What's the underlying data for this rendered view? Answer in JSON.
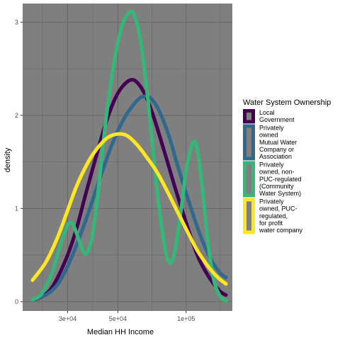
{
  "chart_data": {
    "type": "line",
    "title": "",
    "xlabel": "Median HH Income",
    "ylabel": "density",
    "x_scale": "log10",
    "xlim": [
      19000,
      160000
    ],
    "ylim": [
      -0.1,
      3.2
    ],
    "x_ticks": [
      {
        "value": 30000,
        "label": "3e+04"
      },
      {
        "value": 50000,
        "label": "5e+04"
      },
      {
        "value": 100000,
        "label": "1e+05"
      }
    ],
    "y_ticks": [
      {
        "value": 0,
        "label": "0"
      },
      {
        "value": 1,
        "label": "1"
      },
      {
        "value": 2,
        "label": "2"
      },
      {
        "value": 3,
        "label": "3"
      }
    ],
    "grid": true,
    "panel_background": "#7f7f7f",
    "grid_color": "#666666",
    "legend": {
      "title": "Water System Ownership",
      "position": "right"
    },
    "series": [
      {
        "name": "Local Government",
        "name_lines": [
          "Local",
          "Government"
        ],
        "color": "#440154",
        "points": [
          [
            21000,
            0.02
          ],
          [
            23000,
            0.05
          ],
          [
            25000,
            0.12
          ],
          [
            27000,
            0.25
          ],
          [
            30000,
            0.5
          ],
          [
            33000,
            0.8
          ],
          [
            36000,
            1.15
          ],
          [
            40000,
            1.55
          ],
          [
            44000,
            1.9
          ],
          [
            48000,
            2.15
          ],
          [
            52000,
            2.3
          ],
          [
            57000,
            2.38
          ],
          [
            61000,
            2.35
          ],
          [
            66000,
            2.22
          ],
          [
            72000,
            1.98
          ],
          [
            80000,
            1.62
          ],
          [
            90000,
            1.2
          ],
          [
            100000,
            0.85
          ],
          [
            112000,
            0.5
          ],
          [
            125000,
            0.28
          ],
          [
            140000,
            0.12
          ],
          [
            150000,
            0.07
          ]
        ]
      },
      {
        "name": "Privately owned Mutual Water Company or Association",
        "name_lines": [
          "Privately",
          "owned",
          "Mutual Water",
          "Company or",
          "Association"
        ],
        "color": "#31688e",
        "points": [
          [
            21000,
            0.02
          ],
          [
            24000,
            0.07
          ],
          [
            27000,
            0.18
          ],
          [
            30000,
            0.38
          ],
          [
            33000,
            0.62
          ],
          [
            37000,
            0.95
          ],
          [
            42000,
            1.35
          ],
          [
            47000,
            1.68
          ],
          [
            52000,
            1.92
          ],
          [
            58000,
            2.1
          ],
          [
            64000,
            2.2
          ],
          [
            70000,
            2.18
          ],
          [
            76000,
            2.05
          ],
          [
            84000,
            1.78
          ],
          [
            92000,
            1.45
          ],
          [
            102000,
            1.1
          ],
          [
            114000,
            0.75
          ],
          [
            127000,
            0.48
          ],
          [
            140000,
            0.32
          ],
          [
            150000,
            0.26
          ]
        ]
      },
      {
        "name": "Privately owned, non-PUC-regulated (Community Water System)",
        "name_lines": [
          "Privately",
          "owned, non-",
          "PUC-regulated",
          "(Community",
          "Water System)"
        ],
        "color": "#35b779",
        "points": [
          [
            21000,
            0.02
          ],
          [
            23000,
            0.08
          ],
          [
            25500,
            0.3
          ],
          [
            28000,
            0.62
          ],
          [
            30000,
            0.82
          ],
          [
            31500,
            0.84
          ],
          [
            33000,
            0.72
          ],
          [
            35000,
            0.55
          ],
          [
            36500,
            0.52
          ],
          [
            38500,
            0.7
          ],
          [
            41000,
            1.2
          ],
          [
            44000,
            1.9
          ],
          [
            48000,
            2.55
          ],
          [
            52000,
            2.95
          ],
          [
            56000,
            3.1
          ],
          [
            59000,
            3.08
          ],
          [
            63000,
            2.8
          ],
          [
            68000,
            2.15
          ],
          [
            73000,
            1.4
          ],
          [
            78000,
            0.8
          ],
          [
            83000,
            0.45
          ],
          [
            88000,
            0.48
          ],
          [
            94000,
            0.9
          ],
          [
            100000,
            1.4
          ],
          [
            106000,
            1.68
          ],
          [
            111000,
            1.68
          ],
          [
            117000,
            1.3
          ],
          [
            124000,
            0.7
          ],
          [
            132000,
            0.25
          ],
          [
            142000,
            0.05
          ],
          [
            150000,
            0.01
          ]
        ]
      },
      {
        "name": "Privately owned, PUC-regulated, for profit water company",
        "name_lines": [
          "Privately",
          "owned, PUC-",
          "regulated,",
          "for profit",
          "water company"
        ],
        "color": "#fde725",
        "points": [
          [
            21000,
            0.23
          ],
          [
            24000,
            0.42
          ],
          [
            27000,
            0.68
          ],
          [
            30000,
            0.98
          ],
          [
            33000,
            1.25
          ],
          [
            37000,
            1.5
          ],
          [
            41000,
            1.66
          ],
          [
            45000,
            1.76
          ],
          [
            50000,
            1.8
          ],
          [
            55000,
            1.78
          ],
          [
            61000,
            1.68
          ],
          [
            67000,
            1.55
          ],
          [
            74000,
            1.4
          ],
          [
            82000,
            1.2
          ],
          [
            91000,
            0.98
          ],
          [
            101000,
            0.76
          ],
          [
            112000,
            0.55
          ],
          [
            125000,
            0.38
          ],
          [
            138000,
            0.26
          ],
          [
            150000,
            0.19
          ]
        ]
      }
    ]
  }
}
